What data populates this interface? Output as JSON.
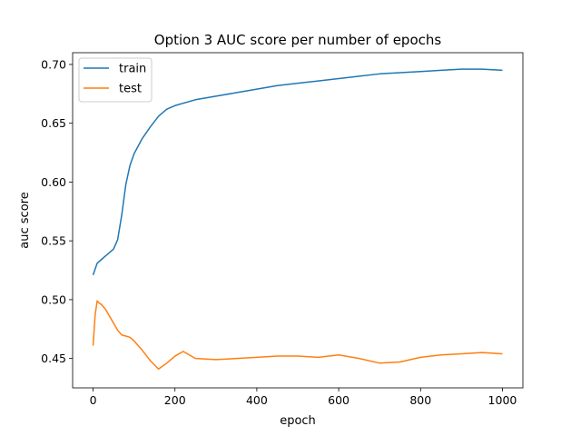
{
  "chart_data": {
    "type": "line",
    "title": "Option 3 AUC score per number of epochs",
    "xlabel": "epoch",
    "ylabel": "auc score",
    "xlim": [
      -50,
      1050
    ],
    "ylim": [
      0.425,
      0.71
    ],
    "x_ticks": [
      0,
      200,
      400,
      600,
      800,
      1000
    ],
    "y_ticks": [
      0.45,
      0.5,
      0.55,
      0.6,
      0.65,
      0.7
    ],
    "y_tick_labels": [
      "0.45",
      "0.50",
      "0.55",
      "0.60",
      "0.65",
      "0.70"
    ],
    "grid": false,
    "legend_position": "top-left",
    "series": [
      {
        "name": "train",
        "color": "#1f77b4",
        "x": [
          0,
          10,
          20,
          30,
          40,
          50,
          60,
          70,
          80,
          90,
          100,
          120,
          140,
          160,
          180,
          200,
          250,
          300,
          350,
          400,
          450,
          500,
          550,
          600,
          650,
          700,
          750,
          800,
          850,
          900,
          950,
          1000
        ],
        "y": [
          0.521,
          0.531,
          0.534,
          0.537,
          0.54,
          0.543,
          0.551,
          0.572,
          0.598,
          0.614,
          0.624,
          0.637,
          0.647,
          0.656,
          0.662,
          0.665,
          0.67,
          0.673,
          0.676,
          0.679,
          0.682,
          0.684,
          0.686,
          0.688,
          0.69,
          0.692,
          0.693,
          0.694,
          0.695,
          0.696,
          0.696,
          0.695
        ]
      },
      {
        "name": "test",
        "color": "#ff7f0e",
        "x": [
          0,
          5,
          10,
          15,
          20,
          30,
          40,
          50,
          60,
          70,
          80,
          90,
          100,
          120,
          140,
          160,
          180,
          200,
          220,
          250,
          300,
          350,
          400,
          450,
          500,
          550,
          600,
          650,
          700,
          750,
          800,
          850,
          900,
          950,
          1000
        ],
        "y": [
          0.461,
          0.487,
          0.499,
          0.497,
          0.496,
          0.492,
          0.486,
          0.48,
          0.474,
          0.47,
          0.469,
          0.468,
          0.465,
          0.457,
          0.448,
          0.441,
          0.446,
          0.452,
          0.456,
          0.45,
          0.449,
          0.45,
          0.451,
          0.452,
          0.452,
          0.451,
          0.453,
          0.45,
          0.446,
          0.447,
          0.451,
          0.453,
          0.454,
          0.455,
          0.454
        ]
      }
    ]
  }
}
